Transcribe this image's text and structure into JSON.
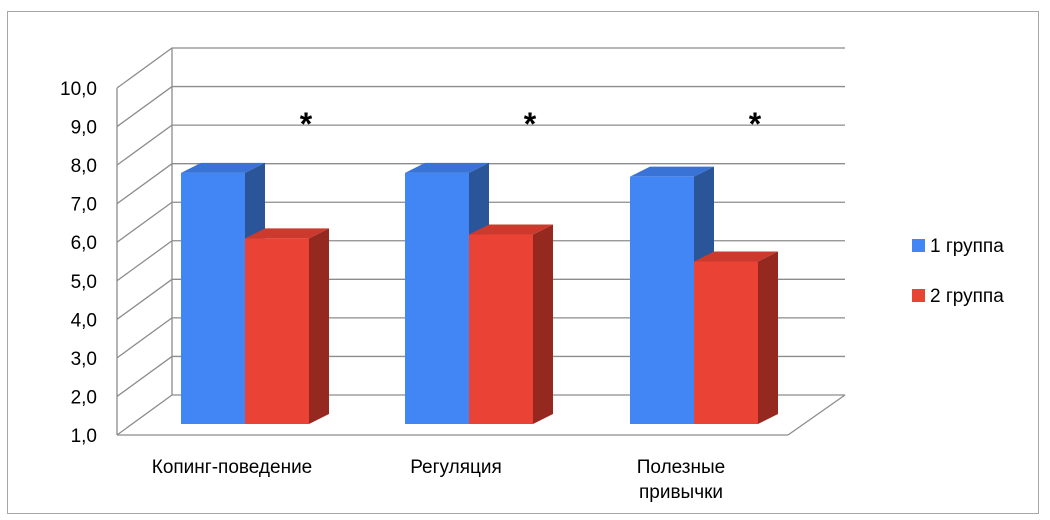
{
  "chart_data": {
    "type": "bar",
    "categories": [
      [
        "Копинг-поведение"
      ],
      [
        "Регуляция"
      ],
      [
        "Полезные",
        "привычки"
      ]
    ],
    "series": [
      {
        "name": "1 группа",
        "values": [
          7.8,
          7.8,
          7.7
        ]
      },
      {
        "name": "2 группа",
        "values": [
          6.1,
          6.2,
          5.5
        ]
      }
    ],
    "annotations": [
      "*",
      "*",
      "*"
    ],
    "ylim": [
      1.0,
      10.0
    ],
    "yticks": [
      "1,0",
      "2,0",
      "3,0",
      "4,0",
      "5,0",
      "6,0",
      "7,0",
      "8,0",
      "9,0",
      "10,0"
    ],
    "grid": true,
    "projection": "3d",
    "legend_position": "right",
    "colors": {
      "series_front": [
        "#4285f4",
        "#ea4335"
      ],
      "series_top": [
        "#3a73d6",
        "#cc3a2e"
      ],
      "series_side": [
        "#2a5599",
        "#96291f"
      ],
      "grid": "#8c8c8c",
      "frame": "#a6a6a6"
    }
  }
}
